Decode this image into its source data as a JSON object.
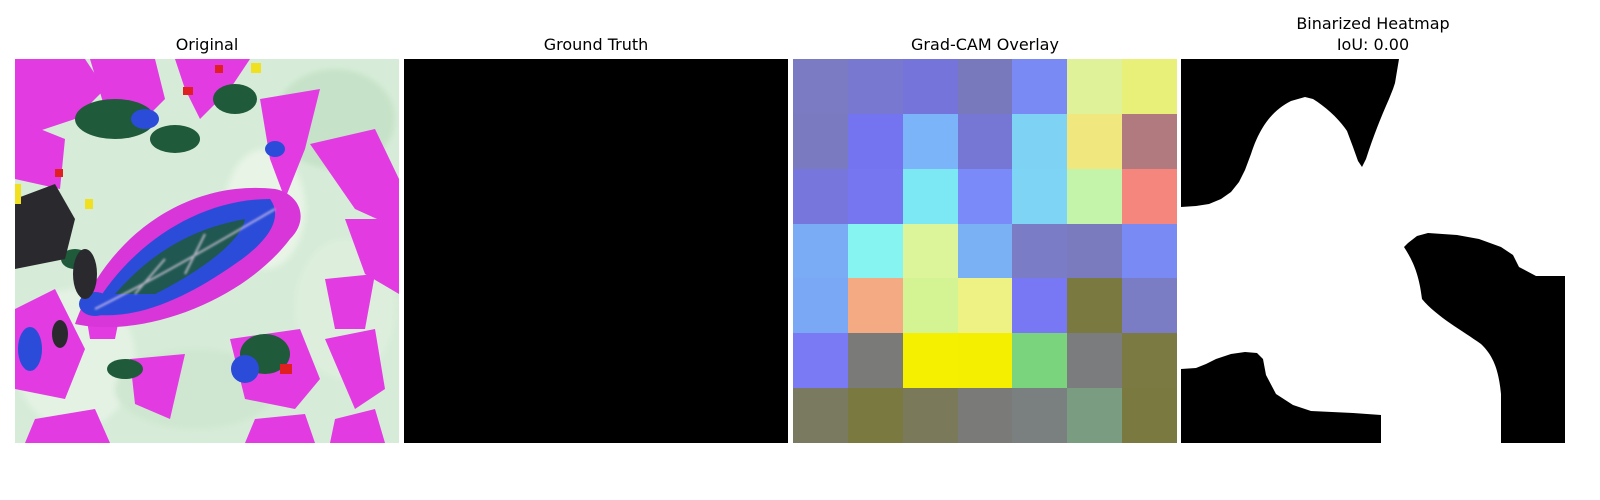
{
  "panels": [
    {
      "title": "Original"
    },
    {
      "title": "Ground Truth"
    },
    {
      "title": "Grad-CAM Overlay"
    },
    {
      "title": "Binarized Heatmap",
      "subtitle": "IoU: 0.00"
    }
  ],
  "gradcam_overlay": {
    "grid_size": 7,
    "cells": [
      [
        "#7b7bc4",
        "#7878d0",
        "#7474da",
        "#7878bc",
        "#7a8af4",
        "#dff29a",
        "#e8f07a"
      ],
      [
        "#7a7ac0",
        "#7474f0",
        "#7bb4f8",
        "#7676d4",
        "#7ed2f4",
        "#f0e87e",
        "#b07a7e"
      ],
      [
        "#7676dc",
        "#7676f0",
        "#7ce8f4",
        "#7a8af8",
        "#7ed4f4",
        "#c4f4aa",
        "#f4867e"
      ],
      [
        "#7aacf6",
        "#86f4f0",
        "#dcf49a",
        "#7ab0f4",
        "#7a7cc6",
        "#7a7abe",
        "#7a8af4"
      ],
      [
        "#7aa8f4",
        "#f4aa82",
        "#d4f494",
        "#eef284",
        "#7878f4",
        "#7a7a40",
        "#7a7cc4"
      ],
      [
        "#7a7af4",
        "#7a7a78",
        "#f4f000",
        "#f4ee00",
        "#7ad47e",
        "#7a7c7e",
        "#7a7a42"
      ],
      [
        "#7a7a60",
        "#7a7a40",
        "#7a7a5a",
        "#7a7a78",
        "#7a8080",
        "#7a9c80",
        "#7a7a40"
      ]
    ]
  },
  "colors": {
    "ground_truth_fill": "#000000",
    "heatmap_fg": "#ffffff",
    "heatmap_bg": "#000000"
  }
}
